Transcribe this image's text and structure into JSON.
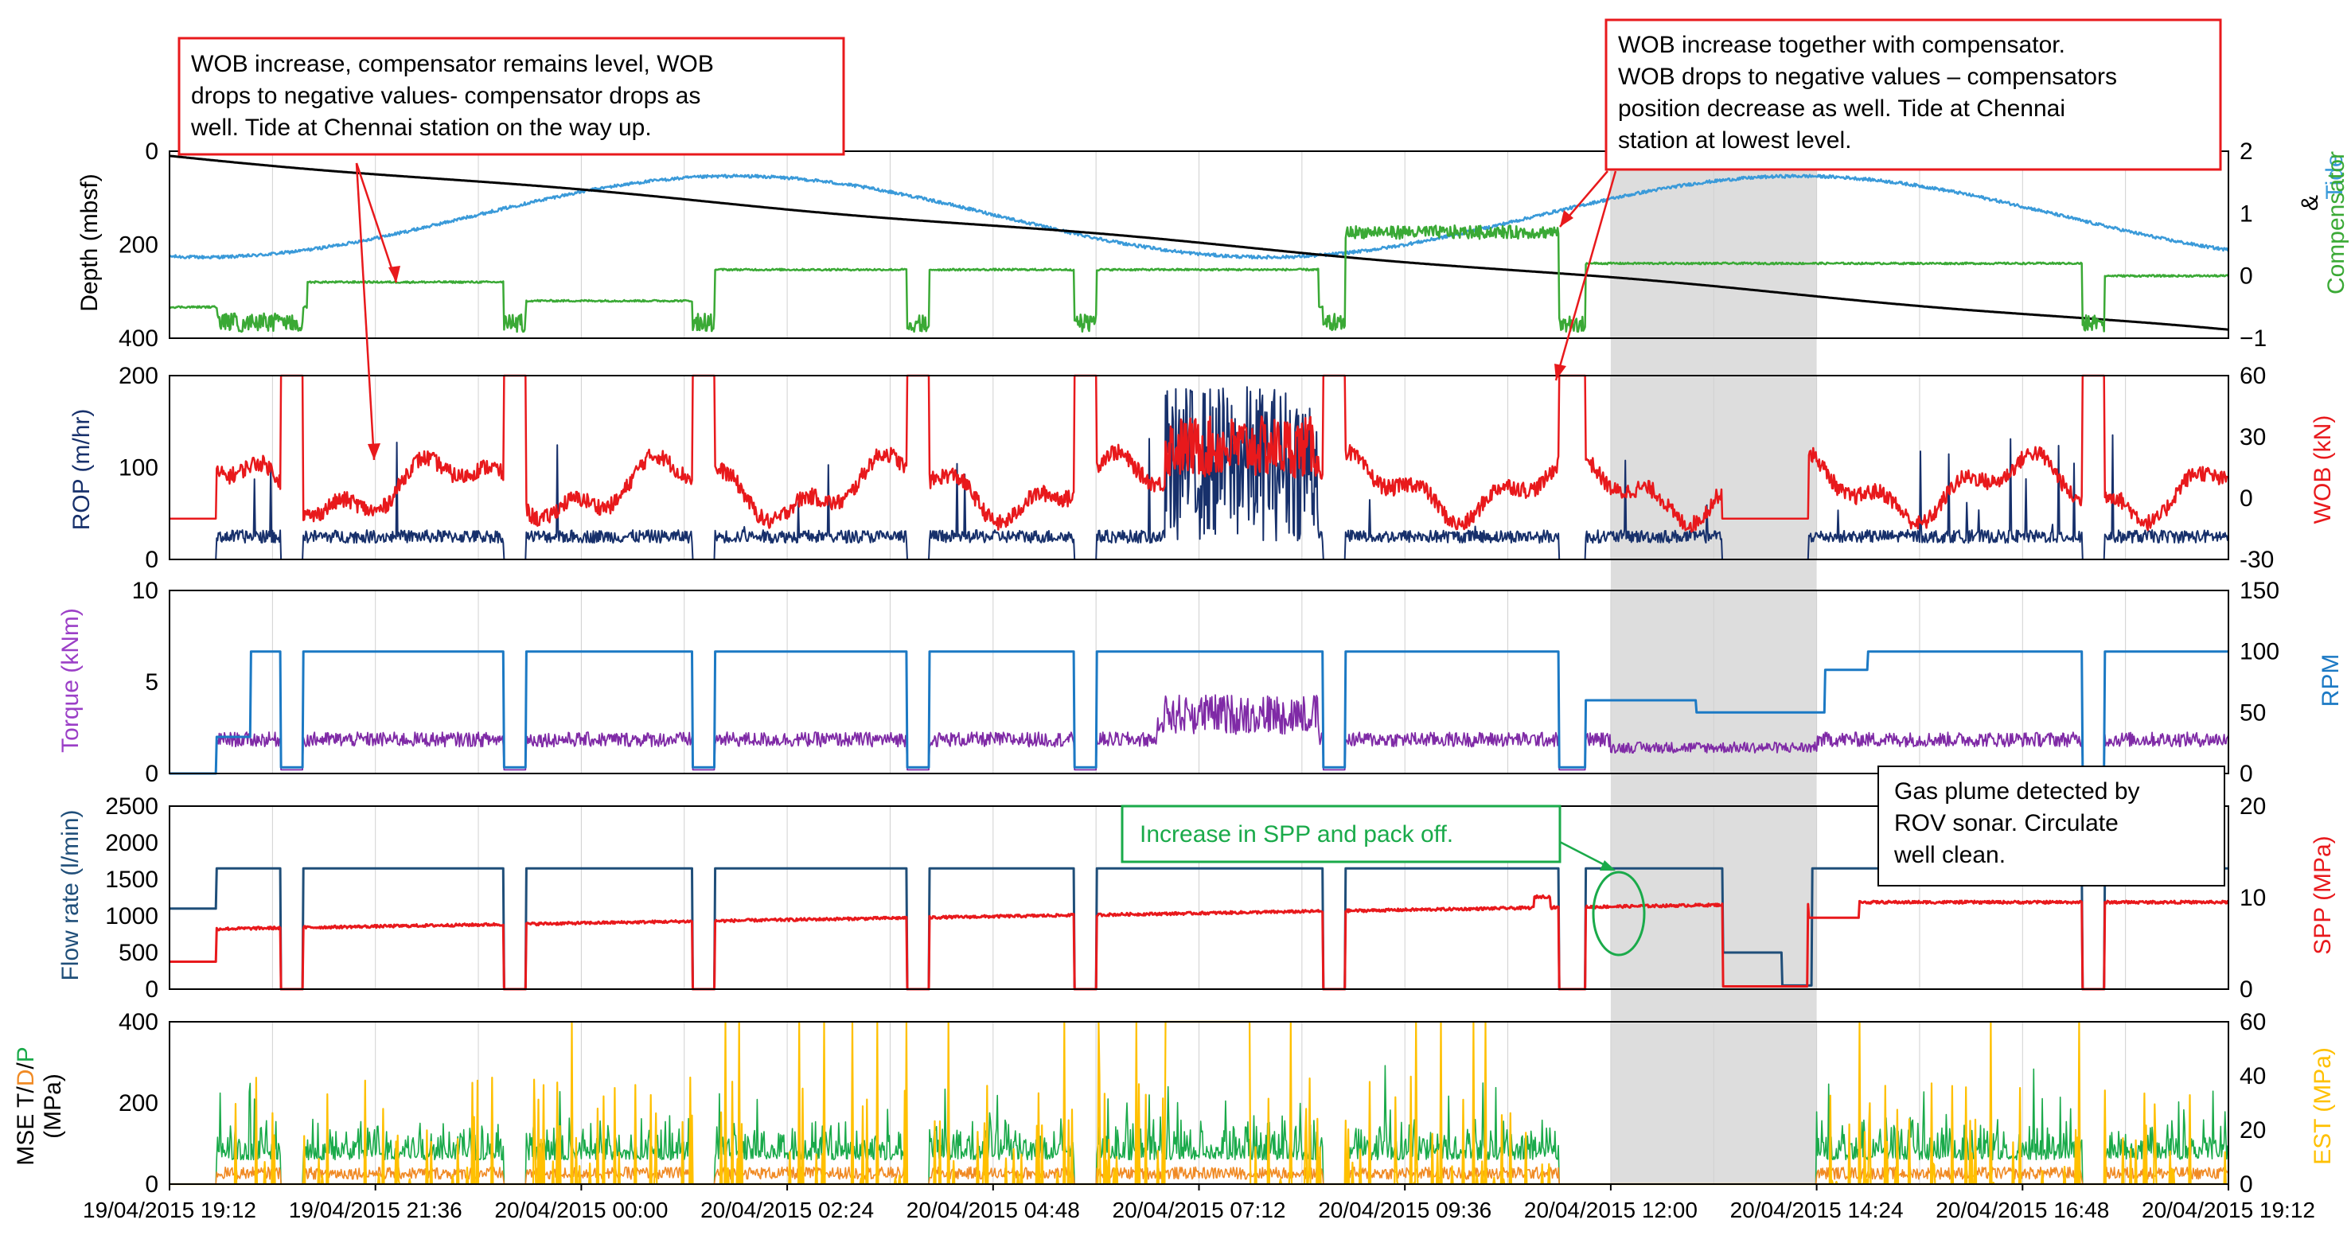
{
  "chart_data": {
    "type": "line",
    "title": "",
    "x_axis": {
      "start": "19/04/2015 19:12",
      "end": "20/04/2015 19:12",
      "ticks": [
        "19/04/2015 19:12",
        "19/04/2015 21:36",
        "20/04/2015 00:00",
        "20/04/2015 02:24",
        "20/04/2015 04:48",
        "20/04/2015 07:12",
        "20/04/2015 09:36",
        "20/04/2015 12:00",
        "20/04/2015 14:24",
        "20/04/2015 16:48",
        "20/04/2015 19:12"
      ]
    },
    "highlight_region": {
      "from_hours": 16.8,
      "to_hours": 19.2,
      "color": "#d9d9d9"
    },
    "panels": [
      {
        "id": "depth",
        "left_axis": {
          "label": "Depth (mbsf)",
          "range": [
            0,
            400
          ],
          "inverted": true,
          "ticks": [
            "0",
            "200",
            "400"
          ]
        },
        "right_axis": {
          "label_parts": [
            "Tide",
            "&",
            "Compensator"
          ],
          "range": [
            -1,
            2
          ],
          "ticks": [
            "2",
            "1",
            "0",
            "−1"
          ]
        },
        "series": [
          {
            "name": "Depth",
            "color": "#000000",
            "axis": "left"
          },
          {
            "name": "Tide",
            "color": "#3a9ad9",
            "axis": "right"
          },
          {
            "name": "Compensator",
            "color": "#3aa935",
            "axis": "right"
          }
        ]
      },
      {
        "id": "rop_wob",
        "left_axis": {
          "label": "ROP (m/hr)",
          "range": [
            0,
            200
          ],
          "ticks": [
            "200",
            "100",
            "0"
          ]
        },
        "right_axis": {
          "label": "WOB (kN)",
          "range": [
            -30,
            60
          ],
          "ticks": [
            "60",
            "30",
            "0",
            "-30"
          ]
        },
        "series": [
          {
            "name": "ROP",
            "color": "#17306b",
            "axis": "left"
          },
          {
            "name": "WOB",
            "color": "#e8191c",
            "axis": "right"
          }
        ]
      },
      {
        "id": "torque_rpm",
        "left_axis": {
          "label": "Torque (kNm)",
          "range": [
            0,
            10
          ],
          "ticks": [
            "10",
            "5",
            "0"
          ]
        },
        "right_axis": {
          "label": "RPM",
          "range": [
            0,
            150
          ],
          "ticks": [
            "150",
            "100",
            "50",
            "0"
          ]
        },
        "series": [
          {
            "name": "Torque",
            "color": "#7f2aa6",
            "axis": "left"
          },
          {
            "name": "RPM",
            "color": "#1b79c4",
            "axis": "right"
          }
        ]
      },
      {
        "id": "flow_spp",
        "left_axis": {
          "label": "Flow rate (l/min)",
          "range": [
            0,
            2500
          ],
          "ticks": [
            "2500",
            "2000",
            "1500",
            "1000",
            "500",
            "0"
          ]
        },
        "right_axis": {
          "label": "SPP (MPa)",
          "range": [
            0,
            20
          ],
          "ticks": [
            "20",
            "10",
            "0"
          ]
        },
        "series": [
          {
            "name": "Flow rate",
            "color": "#1f4e79",
            "axis": "left"
          },
          {
            "name": "SPP",
            "color": "#e8191c",
            "axis": "right"
          }
        ]
      },
      {
        "id": "mse_est",
        "left_axis": {
          "label_parts": [
            "MSE T/",
            "D",
            "/",
            "P"
          ],
          "label_line2": "(MPa)",
          "range": [
            0,
            400
          ],
          "ticks": [
            "400",
            "200",
            "0"
          ]
        },
        "right_axis": {
          "label": "EST (MPa)",
          "range": [
            0,
            60
          ],
          "ticks": [
            "60",
            "40",
            "20",
            "0"
          ]
        },
        "series": [
          {
            "name": "MSE T",
            "color": "#1f1f1f",
            "axis": "left"
          },
          {
            "name": "MSE D",
            "color": "#f08a24",
            "axis": "left"
          },
          {
            "name": "MSE P",
            "color": "#1aaa4a",
            "axis": "left"
          },
          {
            "name": "EST",
            "color": "#ffc000",
            "axis": "right"
          }
        ]
      }
    ],
    "annotations": [
      {
        "id": "note-wob-compensator-level",
        "lines": [
          "WOB increase, compensator remains level, WOB",
          "drops to negative values- compensator drops as",
          "well. Tide at Chennai station on the way up."
        ],
        "border": "#e8191c"
      },
      {
        "id": "note-wob-with-compensator",
        "lines": [
          "WOB increase together with compensator.",
          "WOB drops to negative values – compensators",
          "position decrease as well. Tide at Chennai",
          "station at lowest level."
        ],
        "border": "#e8191c"
      },
      {
        "id": "note-spp-packoff",
        "lines": [
          "Increase in SPP and pack off."
        ],
        "border": "#1aaa4a"
      },
      {
        "id": "note-gas-plume",
        "lines": [
          "Gas plume detected by",
          "ROV sonar. Circulate",
          "well clean."
        ],
        "border": "#000000"
      }
    ]
  }
}
